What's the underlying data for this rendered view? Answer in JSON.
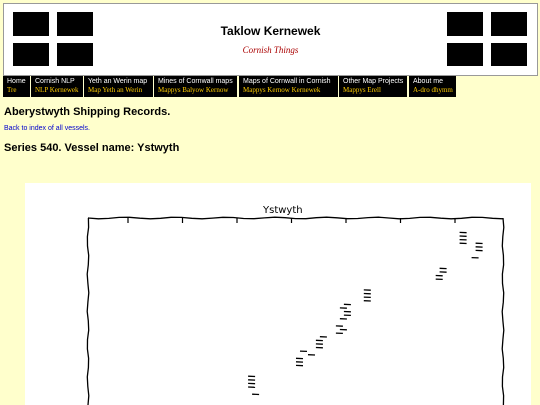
{
  "header": {
    "title": "Taklow Kernewek",
    "subtitle": "Cornish Things",
    "flag_left_icon": "cornish-flag-icon",
    "flag_right_icon": "cornish-flag-icon"
  },
  "nav": {
    "items": [
      {
        "label": "Home",
        "sublabel": "Tre"
      },
      {
        "label": "Cornish NLP",
        "sublabel": "NLP Kernewek"
      },
      {
        "label": "Yeth an Werin map",
        "sublabel": "Map Yeth an Werin"
      },
      {
        "label": "Mines of Cornwall maps",
        "sublabel": "Mappys Balyow Kernow"
      },
      {
        "label": "Maps of Cornwall in Cornish",
        "sublabel": "Mappys Kernow Kernewek"
      },
      {
        "label": "Other Map Projects",
        "sublabel": "Mappys Erell"
      },
      {
        "label": "About me",
        "sublabel": "A-dro dhymm"
      }
    ]
  },
  "page": {
    "heading": "Aberystwyth Shipping Records.",
    "back_link": "Back to index of all vessels.",
    "series_heading": "Series 540. Vessel name: Ystwyth"
  },
  "chart_data": {
    "type": "scatter",
    "title": "Ystwyth",
    "style": "xkcd hand-drawn",
    "x": [
      0.94,
      0.94,
      0.94,
      0.94,
      0.97,
      0.98,
      0.98,
      0.98,
      0.89,
      0.89,
      0.88,
      0.88,
      0.7,
      0.7,
      0.7,
      0.7,
      0.65,
      0.64,
      0.65,
      0.65,
      0.64,
      0.63,
      0.64,
      0.63,
      0.59,
      0.58,
      0.58,
      0.58,
      0.56,
      0.53,
      0.53,
      0.53,
      0.54,
      0.41,
      0.41,
      0.41,
      0.41,
      0.42
    ],
    "y": [
      0.96,
      0.95,
      0.94,
      0.93,
      0.89,
      0.91,
      0.92,
      0.93,
      0.86,
      0.85,
      0.84,
      0.83,
      0.8,
      0.79,
      0.78,
      0.77,
      0.76,
      0.75,
      0.74,
      0.73,
      0.72,
      0.7,
      0.69,
      0.68,
      0.67,
      0.66,
      0.65,
      0.64,
      0.62,
      0.61,
      0.6,
      0.59,
      0.63,
      0.56,
      0.55,
      0.54,
      0.53,
      0.51
    ],
    "xlim": [
      0,
      1.04
    ],
    "ylim": [
      0.48,
      1.0
    ],
    "xticks_count": 7,
    "grid": false
  }
}
